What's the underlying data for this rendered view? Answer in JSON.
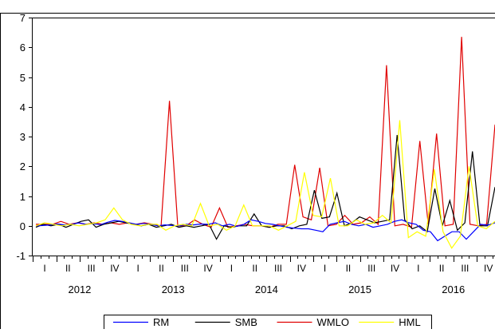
{
  "chart_data": {
    "type": "line",
    "title": "",
    "xlabel": "",
    "ylabel": "",
    "ylim": [
      -1,
      7
    ],
    "y_ticks": [
      -1,
      0,
      1,
      2,
      3,
      4,
      5,
      6,
      7
    ],
    "grid": false,
    "legend_position": "bottom",
    "quarter_labels": [
      "I",
      "II",
      "III",
      "IV"
    ],
    "years": [
      "2012",
      "2013",
      "2014",
      "2015",
      "2016"
    ],
    "x_start": "2012-01",
    "x_end": "2016-12",
    "series": [
      {
        "name": "RM",
        "color": "#0000ff",
        "values": [
          0.0,
          0.01,
          0.03,
          0.06,
          0.03,
          0.05,
          0.1,
          0.05,
          0.07,
          0.04,
          0.12,
          0.18,
          0.15,
          0.1,
          0.05,
          0.08,
          0.05,
          0.0,
          0.03,
          0.01,
          0.0,
          0.05,
          0.03,
          0.06,
          0.05,
          0.1,
          0.0,
          0.05,
          -0.02,
          0.05,
          0.2,
          0.15,
          0.08,
          0.05,
          0.0,
          -0.05,
          -0.08,
          -0.1,
          -0.1,
          -0.15,
          -0.2,
          0.05,
          0.1,
          0.15,
          0.05,
          0.0,
          0.05,
          -0.05,
          0.0,
          0.05,
          0.15,
          0.2,
          0.1,
          0.05,
          -0.15,
          -0.2,
          -0.5,
          -0.35,
          -0.2,
          -0.2,
          -0.45,
          -0.2,
          0.05,
          0.02,
          0.1
        ]
      },
      {
        "name": "SMB",
        "color": "#000000",
        "values": [
          -0.05,
          0.05,
          0.0,
          0.05,
          -0.05,
          0.05,
          0.15,
          0.2,
          -0.05,
          0.05,
          0.1,
          0.15,
          0.1,
          0.05,
          0.0,
          0.05,
          -0.05,
          0.0,
          0.05,
          -0.05,
          0.0,
          -0.05,
          0.0,
          0.05,
          -0.45,
          0.0,
          -0.05,
          0.0,
          0.0,
          0.4,
          0.0,
          -0.05,
          0.0,
          0.0,
          -0.1,
          0.0,
          0.05,
          1.2,
          0.25,
          0.3,
          1.1,
          0.0,
          0.1,
          0.3,
          0.2,
          0.1,
          0.15,
          0.2,
          3.05,
          0.2,
          -0.1,
          0.0,
          -0.2,
          1.25,
          0.0,
          0.85,
          -0.15,
          0.1,
          2.5,
          0.0,
          0.0,
          1.3
        ]
      },
      {
        "name": "WMLO",
        "color": "#e00000",
        "values": [
          0.05,
          0.05,
          0.05,
          0.15,
          0.05,
          0.1,
          0.05,
          0.1,
          0.05,
          0.1,
          0.05,
          0.1,
          0.05,
          0.1,
          0.05,
          0.0,
          4.2,
          0.0,
          0.0,
          0.2,
          0.05,
          -0.05,
          0.6,
          -0.05,
          0.0,
          0.05,
          0.0,
          0.0,
          -0.05,
          0.05,
          0.05,
          2.05,
          0.3,
          0.2,
          1.95,
          0.0,
          0.05,
          0.35,
          0.05,
          0.1,
          0.3,
          0.05,
          5.4,
          0.0,
          0.05,
          -0.05,
          2.85,
          0.05,
          3.1,
          0.0,
          0.05,
          6.35,
          0.05,
          0.0,
          0.05,
          3.4
        ]
      },
      {
        "name": "HML",
        "color": "#ffff00",
        "values": [
          0.0,
          0.1,
          0.05,
          0.0,
          0.05,
          0.0,
          0.05,
          0.1,
          0.2,
          0.6,
          0.2,
          0.05,
          0.0,
          0.05,
          0.05,
          -0.15,
          0.0,
          0.05,
          0.0,
          0.75,
          0.0,
          0.05,
          -0.15,
          0.0,
          0.7,
          0.0,
          0.0,
          0.0,
          -0.15,
          0.0,
          0.15,
          1.8,
          0.35,
          0.3,
          1.6,
          0.0,
          0.0,
          0.2,
          0.05,
          0.1,
          0.35,
          0.1,
          3.55,
          -0.4,
          -0.2,
          -0.35,
          1.9,
          -0.2,
          -0.75,
          -0.35,
          2.0,
          0.0,
          -0.1,
          0.15
        ]
      }
    ]
  }
}
